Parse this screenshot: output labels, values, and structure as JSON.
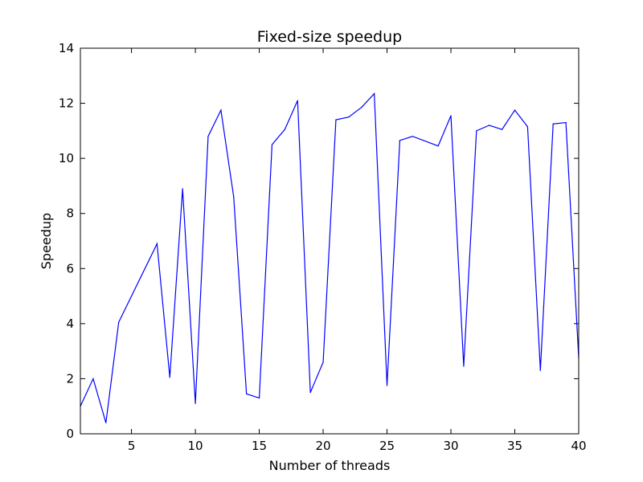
{
  "chart_data": {
    "type": "line",
    "title": "Fixed-size speedup",
    "xlabel": "Number of threads",
    "ylabel": "Speedup",
    "xlim": [
      1,
      40
    ],
    "ylim": [
      0,
      14
    ],
    "xticks": [
      5,
      10,
      15,
      20,
      25,
      30,
      35,
      40
    ],
    "yticks": [
      0,
      2,
      4,
      6,
      8,
      10,
      12,
      14
    ],
    "grid": false,
    "series": [
      {
        "color": "#0000ff",
        "x": [
          1,
          2,
          3,
          4,
          7,
          8,
          9,
          10,
          11,
          12,
          13,
          14,
          15,
          16,
          17,
          18,
          19,
          20,
          21,
          22,
          23,
          24,
          25,
          26,
          27,
          29,
          30,
          31,
          32,
          33,
          34,
          35,
          36,
          37,
          38,
          39,
          40
        ],
        "y": [
          1.0,
          2.0,
          0.4,
          4.05,
          6.9,
          2.05,
          8.9,
          1.1,
          10.8,
          11.75,
          8.6,
          1.45,
          1.3,
          10.5,
          11.05,
          12.1,
          1.5,
          2.6,
          11.4,
          11.5,
          11.85,
          12.35,
          1.75,
          10.65,
          10.8,
          10.45,
          11.55,
          2.45,
          11.0,
          11.2,
          11.05,
          11.75,
          11.15,
          2.3,
          11.25,
          11.3,
          2.75
        ]
      }
    ]
  }
}
